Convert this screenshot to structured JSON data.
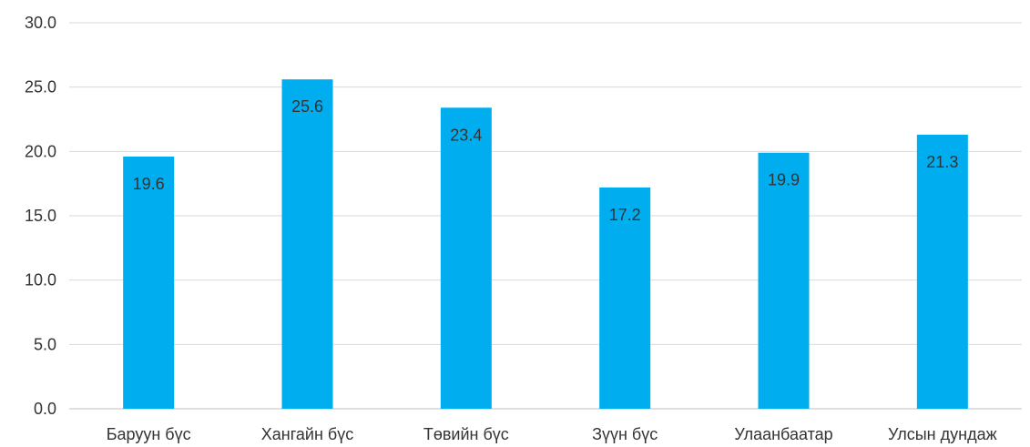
{
  "chart_data": {
    "type": "bar",
    "categories": [
      "Баруун бүс",
      "Хангайн бүс",
      "Төвийн бүс",
      "Зүүн бүс",
      "Улаанбаатар",
      "Улсын дундаж"
    ],
    "values": [
      19.6,
      25.6,
      23.4,
      17.2,
      19.9,
      21.3
    ],
    "title": "",
    "xlabel": "",
    "ylabel": "",
    "ylim": [
      0,
      30
    ],
    "yticks": [
      "0.0",
      "5.0",
      "10.0",
      "15.0",
      "20.0",
      "25.0",
      "30.0"
    ],
    "grid": true,
    "legend": "none",
    "bar_color": "#00AEEF",
    "data_labels": true
  }
}
